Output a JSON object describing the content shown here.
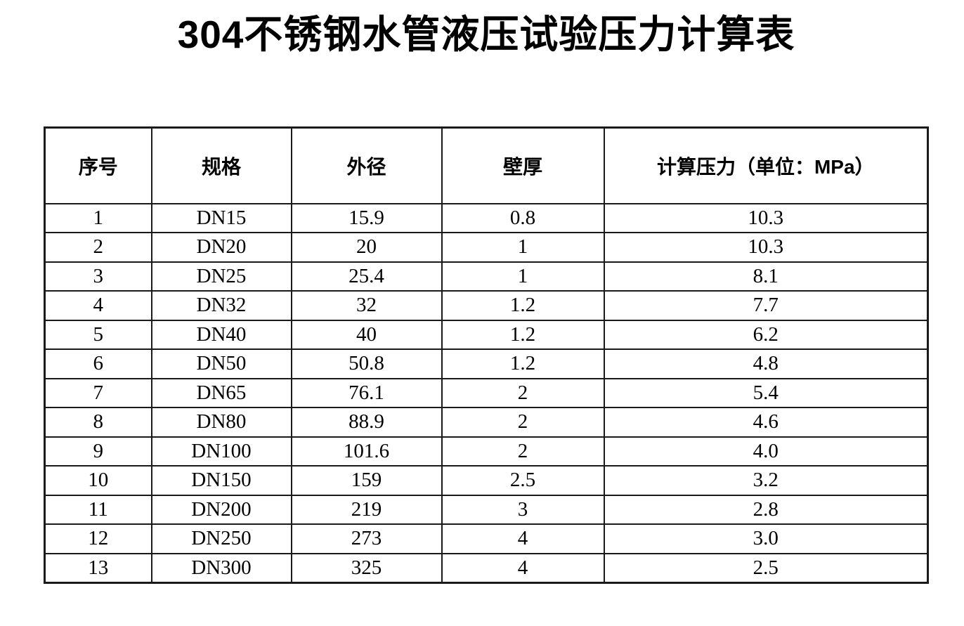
{
  "page": {
    "title": "304不锈钢水管液压试验压力计算表"
  },
  "table": {
    "columns": [
      "序号",
      "规格",
      "外径",
      "壁厚",
      "计算压力（单位：MPa）"
    ],
    "rows": [
      [
        "1",
        "DN15",
        "15.9",
        "0.8",
        "10.3"
      ],
      [
        "2",
        "DN20",
        "20",
        "1",
        "10.3"
      ],
      [
        "3",
        "DN25",
        "25.4",
        "1",
        "8.1"
      ],
      [
        "4",
        "DN32",
        "32",
        "1.2",
        "7.7"
      ],
      [
        "5",
        "DN40",
        "40",
        "1.2",
        "6.2"
      ],
      [
        "6",
        "DN50",
        "50.8",
        "1.2",
        "4.8"
      ],
      [
        "7",
        "DN65",
        "76.1",
        "2",
        "5.4"
      ],
      [
        "8",
        "DN80",
        "88.9",
        "2",
        "4.6"
      ],
      [
        "9",
        "DN100",
        "101.6",
        "2",
        "4.0"
      ],
      [
        "10",
        "DN150",
        "159",
        "2.5",
        "3.2"
      ],
      [
        "11",
        "DN200",
        "219",
        "3",
        "2.8"
      ],
      [
        "12",
        "DN250",
        "273",
        "4",
        "3.0"
      ],
      [
        "13",
        "DN300",
        "325",
        "4",
        "2.5"
      ]
    ]
  }
}
